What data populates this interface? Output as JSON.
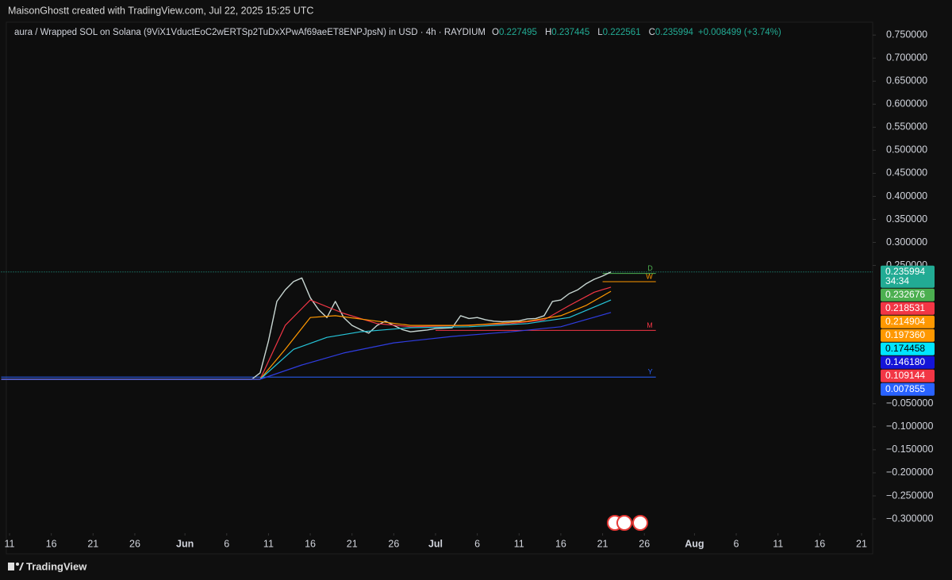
{
  "header": "MaisonGhostt created with TradingView.com, Jul 22, 2025 15:25 UTC",
  "footer": "TradingView",
  "chart_data": {
    "type": "line",
    "title": "aura / Wrapped SOL on Solana (9ViX1VductEoC2wERTSp2TuDxXPwAf69aeET8ENPJpsN) in USD · 4h · RAYDIUM",
    "ohlc": [
      {
        "label": "O",
        "value": 0.227495
      },
      {
        "label": "H",
        "value": 0.237445
      },
      {
        "label": "L",
        "value": 0.222561
      },
      {
        "label": "C",
        "value": 0.235994
      }
    ],
    "change": "+0.008499 (+3.74%)",
    "xlim": [
      "2025-05-10",
      "2025-08-22"
    ],
    "xticks": [
      {
        "value": "2025-05-11",
        "label": "11"
      },
      {
        "value": "2025-05-16",
        "label": "16"
      },
      {
        "value": "2025-05-21",
        "label": "21"
      },
      {
        "value": "2025-05-26",
        "label": "26"
      },
      {
        "value": "2025-06-01",
        "label": "Jun"
      },
      {
        "value": "2025-06-06",
        "label": "6"
      },
      {
        "value": "2025-06-11",
        "label": "11"
      },
      {
        "value": "2025-06-16",
        "label": "16"
      },
      {
        "value": "2025-06-21",
        "label": "21"
      },
      {
        "value": "2025-06-26",
        "label": "26"
      },
      {
        "value": "2025-07-01",
        "label": "Jul"
      },
      {
        "value": "2025-07-06",
        "label": "6"
      },
      {
        "value": "2025-07-11",
        "label": "11"
      },
      {
        "value": "2025-07-16",
        "label": "16"
      },
      {
        "value": "2025-07-21",
        "label": "21"
      },
      {
        "value": "2025-07-26",
        "label": "26"
      },
      {
        "value": "2025-08-01",
        "label": "Aug"
      },
      {
        "value": "2025-08-06",
        "label": "6"
      },
      {
        "value": "2025-08-11",
        "label": "11"
      },
      {
        "value": "2025-08-16",
        "label": "16"
      },
      {
        "value": "2025-08-21",
        "label": "21"
      }
    ],
    "ylim": [
      -0.331,
      0.771
    ],
    "yticks": [
      {
        "value": 0.75,
        "label": "0.750000"
      },
      {
        "value": 0.7,
        "label": "0.700000"
      },
      {
        "value": 0.65,
        "label": "0.650000"
      },
      {
        "value": 0.6,
        "label": "0.600000"
      },
      {
        "value": 0.55,
        "label": "0.550000"
      },
      {
        "value": 0.5,
        "label": "0.500000"
      },
      {
        "value": 0.45,
        "label": "0.450000"
      },
      {
        "value": 0.4,
        "label": "0.400000"
      },
      {
        "value": 0.35,
        "label": "0.350000"
      },
      {
        "value": 0.3,
        "label": "0.300000"
      },
      {
        "value": 0.25,
        "label": "0.250000"
      },
      {
        "value": -0.05,
        "label": "−0.050000"
      },
      {
        "value": -0.1,
        "label": "−0.100000"
      },
      {
        "value": -0.15,
        "label": "−0.150000"
      },
      {
        "value": -0.2,
        "label": "−0.200000"
      },
      {
        "value": -0.25,
        "label": "−0.250000"
      },
      {
        "value": -0.3,
        "label": "−0.300000"
      }
    ],
    "series": [
      {
        "color": "#c8d6d2",
        "x": [
          "2025-05-10",
          "2025-06-09",
          "2025-06-10",
          "2025-06-11",
          "2025-06-12",
          "2025-06-13",
          "2025-06-14",
          "2025-06-15",
          "2025-06-16",
          "2025-06-17",
          "2025-06-18",
          "2025-06-19",
          "2025-06-20",
          "2025-06-21",
          "2025-06-22",
          "2025-06-23",
          "2025-06-24",
          "2025-06-25",
          "2025-06-26",
          "2025-06-27",
          "2025-06-28",
          "2025-06-29",
          "2025-06-30",
          "2025-07-01",
          "2025-07-02",
          "2025-07-03",
          "2025-07-04",
          "2025-07-05",
          "2025-07-06",
          "2025-07-07",
          "2025-07-08",
          "2025-07-09",
          "2025-07-10",
          "2025-07-11",
          "2025-07-12",
          "2025-07-13",
          "2025-07-14",
          "2025-07-15",
          "2025-07-16",
          "2025-07-17",
          "2025-07-18",
          "2025-07-19",
          "2025-07-20",
          "2025-07-21",
          "2025-07-22"
        ],
        "values": [
          0.003,
          0.003,
          0.017,
          0.086,
          0.172,
          0.197,
          0.215,
          0.223,
          0.18,
          0.154,
          0.137,
          0.172,
          0.137,
          0.12,
          0.111,
          0.103,
          0.12,
          0.129,
          0.12,
          0.111,
          0.106,
          0.108,
          0.11,
          0.113,
          0.114,
          0.115,
          0.141,
          0.135,
          0.137,
          0.132,
          0.129,
          0.128,
          0.129,
          0.13,
          0.134,
          0.135,
          0.141,
          0.172,
          0.175,
          0.189,
          0.197,
          0.21,
          0.22,
          0.227,
          0.235994
        ]
      },
      {
        "color": "#f23645",
        "x": [
          "2025-05-10",
          "2025-06-10",
          "2025-06-13",
          "2025-06-16",
          "2025-06-20",
          "2025-06-24",
          "2025-06-28",
          "2025-07-04",
          "2025-07-10",
          "2025-07-14",
          "2025-07-17",
          "2025-07-20",
          "2025-07-22"
        ],
        "values": [
          0.003,
          0.003,
          0.12,
          0.175,
          0.146,
          0.124,
          0.117,
          0.12,
          0.124,
          0.132,
          0.163,
          0.192,
          0.203
        ]
      },
      {
        "color": "#ff9800",
        "x": [
          "2025-05-10",
          "2025-06-10",
          "2025-06-13",
          "2025-06-16",
          "2025-06-19",
          "2025-06-24",
          "2025-06-28",
          "2025-07-05",
          "2025-07-12",
          "2025-07-16",
          "2025-07-19",
          "2025-07-22"
        ],
        "values": [
          0.003,
          0.003,
          0.068,
          0.137,
          0.141,
          0.129,
          0.12,
          0.12,
          0.129,
          0.141,
          0.163,
          0.194
        ]
      },
      {
        "color": "#26c6da",
        "x": [
          "2025-05-10",
          "2025-06-10",
          "2025-06-14",
          "2025-06-18",
          "2025-06-22",
          "2025-06-28",
          "2025-07-05",
          "2025-07-12",
          "2025-07-17",
          "2025-07-22"
        ],
        "values": [
          0.003,
          0.003,
          0.068,
          0.094,
          0.106,
          0.115,
          0.117,
          0.124,
          0.137,
          0.175
        ]
      },
      {
        "color": "#2f3de0",
        "x": [
          "2025-05-10",
          "2025-06-10",
          "2025-06-15",
          "2025-06-20",
          "2025-06-26",
          "2025-07-03",
          "2025-07-10",
          "2025-07-16",
          "2025-07-22"
        ],
        "values": [
          0.003,
          0.003,
          0.034,
          0.06,
          0.082,
          0.096,
          0.106,
          0.117,
          0.148
        ]
      }
    ],
    "levels": [
      {
        "label": "D",
        "value": 0.232676,
        "color": "#4caf50",
        "from": "2025-07-21"
      },
      {
        "label": "W",
        "value": 0.214904,
        "color": "#ff9800",
        "from": "2025-07-21"
      },
      {
        "label": "M",
        "value": 0.109144,
        "color": "#f23645",
        "from": "2025-07-01"
      },
      {
        "label": "Y",
        "value": 0.007855,
        "color": "#2962ff",
        "from": "2025-05-10"
      }
    ],
    "countdown": "34:34",
    "price_labels": [
      {
        "label": "0.235994",
        "color": "#22ab94"
      },
      {
        "label": "0.232676",
        "color": "#4caf50"
      },
      {
        "label": "0.218531",
        "color": "#f23645"
      },
      {
        "label": "0.214904",
        "color": "#ff9800"
      },
      {
        "label": "0.197360",
        "color": "#ff9800"
      },
      {
        "label": "0.174458",
        "color": "#00e5ff"
      },
      {
        "label": "0.146180",
        "color": "#1414d8"
      },
      {
        "label": "0.109144",
        "color": "#f23645"
      },
      {
        "label": "0.007855",
        "color": "#2962ff"
      }
    ]
  }
}
